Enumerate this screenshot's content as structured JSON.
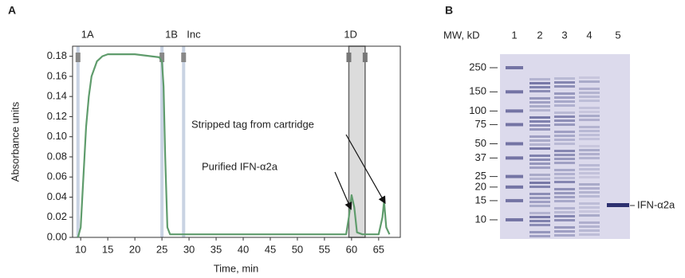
{
  "chart_data": {
    "type": "line",
    "panel_label": "A",
    "x_label": "Time, min",
    "y_label": "Absorbance units",
    "xlim": [
      8.5,
      69
    ],
    "ylim": [
      0,
      0.19
    ],
    "xticks": [
      10,
      15,
      20,
      25,
      30,
      35,
      40,
      45,
      50,
      55,
      60,
      65
    ],
    "yticks": [
      {
        "value": 0,
        "label": "0.00"
      },
      {
        "value": 0.02,
        "label": "0.02"
      },
      {
        "value": 0.04,
        "label": "0.04"
      },
      {
        "value": 0.06,
        "label": "0.06"
      },
      {
        "value": 0.08,
        "label": "0.08"
      },
      {
        "value": 0.1,
        "label": "0.10"
      },
      {
        "value": 0.12,
        "label": "0.12"
      },
      {
        "value": 0.14,
        "label": "0.14"
      },
      {
        "value": 0.16,
        "label": "0.16"
      },
      {
        "value": 0.18,
        "label": "0.18"
      }
    ],
    "color": "#5f9c6c",
    "x": [
      9.5,
      10,
      10.5,
      11,
      11.5,
      12,
      13,
      14,
      15,
      20,
      23,
      24.5,
      25,
      25.3,
      25.6,
      26,
      26.5,
      30,
      59,
      59.5,
      60,
      60.5,
      61,
      62,
      65,
      65.7,
      66,
      66.4,
      67
    ],
    "values": [
      0,
      0.01,
      0.06,
      0.11,
      0.14,
      0.16,
      0.175,
      0.18,
      0.182,
      0.182,
      0.18,
      0.179,
      0.175,
      0.15,
      0.08,
      0.01,
      0.003,
      0.003,
      0.003,
      0.02,
      0.042,
      0.03,
      0.005,
      0.003,
      0.003,
      0.02,
      0.036,
      0.01,
      0.003
    ],
    "events": [
      {
        "label": "1A",
        "x": 9.5
      },
      {
        "label": "1B",
        "x": 25
      },
      {
        "label": "Inc",
        "x": 29
      },
      {
        "label": "1D",
        "x_range": [
          59.5,
          62.5
        ]
      }
    ],
    "annotations": [
      {
        "text": "Stripped tag from cartridge",
        "target": [
          66.2,
          0.034
        ]
      },
      {
        "text": "Purified IFN-α2a",
        "target": [
          59.9,
          0.028
        ]
      }
    ]
  },
  "gel": {
    "panel_label": "B",
    "mw_label": "MW, kD",
    "lanes": [
      "1",
      "2",
      "3",
      "4",
      "5"
    ],
    "markers": [
      250,
      150,
      100,
      75,
      50,
      37,
      25,
      20,
      15,
      10
    ],
    "band_label": "IFN-α2a"
  }
}
